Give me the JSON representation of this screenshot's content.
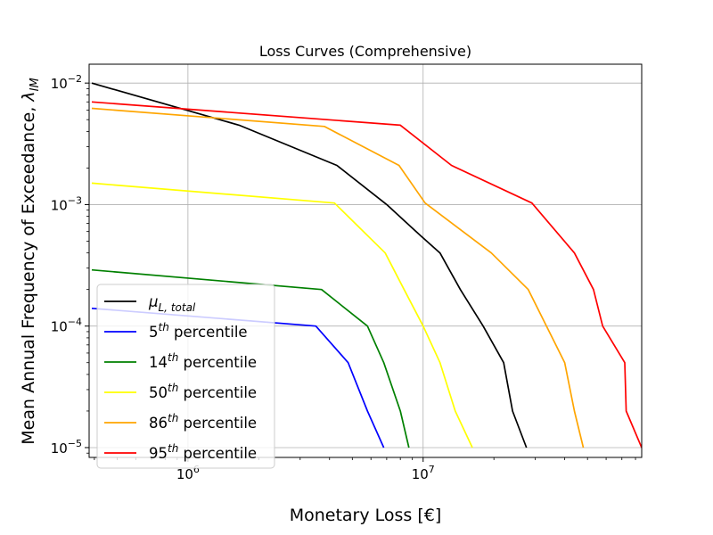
{
  "chart_data": {
    "type": "line",
    "title": "Loss Curves (Comprehensive)",
    "xlabel": "Monetary Loss [€]",
    "ylabel_main": "Mean Annual Frequency of Exceedance, ",
    "ylabel_symbol": "λ",
    "ylabel_sub": "IM",
    "x_scale": "log",
    "y_scale": "log",
    "xlim": [
      380000,
      85000000
    ],
    "ylim": [
      8.3e-06,
      0.0143
    ],
    "grid": true,
    "legend_position": "lower-left",
    "x_ticks": [
      {
        "value": 1000000,
        "base": "10",
        "exp": "6"
      },
      {
        "value": 10000000,
        "base": "10",
        "exp": "7"
      }
    ],
    "y_ticks": [
      {
        "value": 0.01,
        "base": "10",
        "exp": "−2"
      },
      {
        "value": 0.001,
        "base": "10",
        "exp": "−3"
      },
      {
        "value": 0.0001,
        "base": "10",
        "exp": "−4"
      },
      {
        "value": 1e-05,
        "base": "10",
        "exp": "−5"
      }
    ],
    "series": [
      {
        "name": "μ",
        "name_sub": "L, total",
        "name_rest": "",
        "color": "#000000",
        "x": [
          390000,
          1650000,
          4300000,
          7000000,
          9800000,
          11800000,
          14400000,
          18000000,
          22000000,
          24000000,
          27500000
        ],
        "y": [
          0.01,
          0.0045,
          0.0021,
          0.001,
          0.00055,
          0.0004,
          0.0002,
          0.0001,
          5e-05,
          2e-05,
          1e-05
        ]
      },
      {
        "name": "5",
        "name_sup": "th",
        "name_rest": " percentile",
        "color": "#0000ff",
        "x": [
          390000,
          3500000,
          4800000,
          5800000,
          6800000
        ],
        "y": [
          0.00014,
          0.0001,
          5e-05,
          2e-05,
          1e-05
        ]
      },
      {
        "name": "14",
        "name_sup": "th",
        "name_rest": " percentile",
        "color": "#008000",
        "x": [
          390000,
          3700000,
          5800000,
          6800000,
          8000000,
          8700000
        ],
        "y": [
          0.00029,
          0.0002,
          0.0001,
          5e-05,
          2e-05,
          1e-05
        ]
      },
      {
        "name": "50",
        "name_sup": "th",
        "name_rest": " percentile",
        "color": "#ffff00",
        "x": [
          390000,
          4200000,
          6900000,
          8300000,
          10000000,
          11800000,
          13700000,
          16200000
        ],
        "y": [
          0.0015,
          0.00103,
          0.0004,
          0.0002,
          0.0001,
          5e-05,
          2e-05,
          1e-05
        ]
      },
      {
        "name": "86",
        "name_sup": "th",
        "name_rest": " percentile",
        "color": "#ffa500",
        "x": [
          390000,
          3800000,
          7900000,
          10200000,
          19500000,
          28000000,
          40000000,
          44000000,
          48000000
        ],
        "y": [
          0.0062,
          0.0044,
          0.0021,
          0.00103,
          0.0004,
          0.0002,
          5e-05,
          2e-05,
          1e-05
        ]
      },
      {
        "name": "95",
        "name_sup": "th",
        "name_rest": " percentile",
        "color": "#ff0000",
        "x": [
          390000,
          8000000,
          13200000,
          29000000,
          44000000,
          53000000,
          58000000,
          72000000,
          73000000,
          85000000
        ],
        "y": [
          0.007,
          0.0045,
          0.0021,
          0.00103,
          0.0004,
          0.0002,
          0.0001,
          5e-05,
          2e-05,
          1e-05
        ]
      }
    ]
  }
}
